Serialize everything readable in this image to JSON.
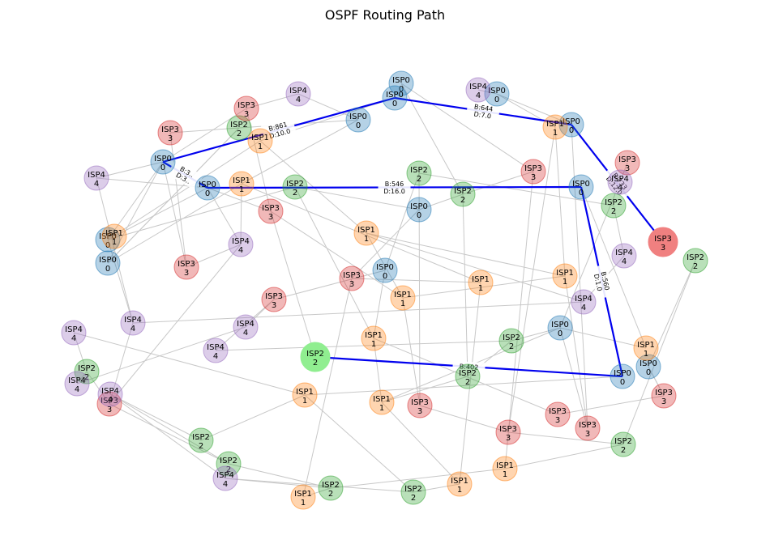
{
  "title": "OSPF Routing Path",
  "colors": {
    "ISP0": "#1f77b4",
    "ISP1": "#ff7f0e",
    "ISP2": "#2ca02c",
    "ISP3": "#d62728",
    "ISP4": "#9467bd",
    "path": "#0000ee",
    "edge": "#c8c8c8",
    "source": "#90ee90",
    "target": "#f08080"
  },
  "nodes": [
    {
      "id": "n0",
      "isp": "ISP0",
      "asn": "0"
    },
    {
      "id": "n1",
      "isp": "ISP0",
      "asn": "0"
    },
    {
      "id": "n2",
      "isp": "ISP0",
      "asn": "0"
    },
    {
      "id": "n3",
      "isp": "ISP0",
      "asn": "0"
    },
    {
      "id": "n4",
      "isp": "ISP0",
      "asn": "0"
    },
    {
      "id": "n5",
      "isp": "ISP0",
      "asn": "0"
    },
    {
      "id": "n6",
      "isp": "ISP0",
      "asn": "0"
    },
    {
      "id": "n7",
      "isp": "ISP0",
      "asn": "0"
    },
    {
      "id": "n8",
      "isp": "ISP0",
      "asn": "0"
    },
    {
      "id": "n9",
      "isp": "ISP0",
      "asn": "0"
    },
    {
      "id": "n10",
      "isp": "ISP0",
      "asn": "0"
    },
    {
      "id": "n11",
      "isp": "ISP0",
      "asn": "0"
    },
    {
      "id": "n12",
      "isp": "ISP0",
      "asn": "0"
    },
    {
      "id": "n13",
      "isp": "ISP0",
      "asn": "0"
    },
    {
      "id": "n14",
      "isp": "ISP0",
      "asn": "0"
    },
    {
      "id": "n15",
      "isp": "ISP1",
      "asn": "1"
    },
    {
      "id": "n16",
      "isp": "ISP1",
      "asn": "1"
    },
    {
      "id": "n17",
      "isp": "ISP1",
      "asn": "1"
    },
    {
      "id": "n18",
      "isp": "ISP1",
      "asn": "1"
    },
    {
      "id": "n19",
      "isp": "ISP1",
      "asn": "1"
    },
    {
      "id": "n20",
      "isp": "ISP1",
      "asn": "1"
    },
    {
      "id": "n21",
      "isp": "ISP1",
      "asn": "1"
    },
    {
      "id": "n22",
      "isp": "ISP1",
      "asn": "1"
    },
    {
      "id": "n23",
      "isp": "ISP1",
      "asn": "1"
    },
    {
      "id": "n24",
      "isp": "ISP1",
      "asn": "1"
    },
    {
      "id": "n25",
      "isp": "ISP1",
      "asn": "1"
    },
    {
      "id": "n26",
      "isp": "ISP1",
      "asn": "1"
    },
    {
      "id": "n27",
      "isp": "ISP1",
      "asn": "1"
    },
    {
      "id": "n28",
      "isp": "ISP1",
      "asn": "1"
    },
    {
      "id": "n29",
      "isp": "ISP1",
      "asn": "1"
    },
    {
      "id": "n30",
      "isp": "ISP2",
      "asn": "2"
    },
    {
      "id": "n31",
      "isp": "ISP2",
      "asn": "2"
    },
    {
      "id": "n32",
      "isp": "ISP2",
      "asn": "2"
    },
    {
      "id": "n33",
      "isp": "ISP2",
      "asn": "2"
    },
    {
      "id": "n34",
      "isp": "ISP2",
      "asn": "2"
    },
    {
      "id": "n35",
      "isp": "ISP2",
      "asn": "2"
    },
    {
      "id": "n36",
      "isp": "ISP2",
      "asn": "2"
    },
    {
      "id": "n37",
      "isp": "ISP2",
      "asn": "2"
    },
    {
      "id": "n38",
      "isp": "ISP2",
      "asn": "2"
    },
    {
      "id": "n39",
      "isp": "ISP2",
      "asn": "2"
    },
    {
      "id": "n40",
      "isp": "ISP2",
      "asn": "2"
    },
    {
      "id": "n41",
      "isp": "ISP2",
      "asn": "2"
    },
    {
      "id": "n42",
      "isp": "ISP2",
      "asn": "2"
    },
    {
      "id": "n43",
      "isp": "ISP2",
      "asn": "2"
    },
    {
      "id": "n44",
      "isp": "ISP3",
      "asn": "3"
    },
    {
      "id": "n45",
      "isp": "ISP3",
      "asn": "3"
    },
    {
      "id": "n46",
      "isp": "ISP3",
      "asn": "3"
    },
    {
      "id": "n47",
      "isp": "ISP3",
      "asn": "3"
    },
    {
      "id": "n48",
      "isp": "ISP3",
      "asn": "3"
    },
    {
      "id": "n49",
      "isp": "ISP3",
      "asn": "3"
    },
    {
      "id": "n50",
      "isp": "ISP3",
      "asn": "3"
    },
    {
      "id": "n51",
      "isp": "ISP3",
      "asn": "3"
    },
    {
      "id": "n52",
      "isp": "ISP3",
      "asn": "3"
    },
    {
      "id": "n53",
      "isp": "ISP3",
      "asn": "3"
    },
    {
      "id": "n54",
      "isp": "ISP3",
      "asn": "3"
    },
    {
      "id": "n55",
      "isp": "ISP3",
      "asn": "3"
    },
    {
      "id": "n56",
      "isp": "ISP3",
      "asn": "3"
    },
    {
      "id": "n57",
      "isp": "ISP3",
      "asn": "3"
    },
    {
      "id": "n58",
      "isp": "ISP3",
      "asn": "3"
    },
    {
      "id": "n59",
      "isp": "ISP4",
      "asn": "4"
    },
    {
      "id": "n60",
      "isp": "ISP4",
      "asn": "4"
    },
    {
      "id": "n61",
      "isp": "ISP4",
      "asn": "4"
    },
    {
      "id": "n62",
      "isp": "ISP4",
      "asn": "4"
    },
    {
      "id": "n63",
      "isp": "ISP4",
      "asn": "4"
    },
    {
      "id": "n64",
      "isp": "ISP4",
      "asn": "4"
    },
    {
      "id": "n65",
      "isp": "ISP4",
      "asn": "4"
    },
    {
      "id": "n66",
      "isp": "ISP4",
      "asn": "4"
    },
    {
      "id": "n67",
      "isp": "ISP4",
      "asn": "4"
    },
    {
      "id": "n68",
      "isp": "ISP4",
      "asn": "4"
    },
    {
      "id": "n69",
      "isp": "ISP4",
      "asn": "4"
    },
    {
      "id": "n70",
      "isp": "ISP4",
      "asn": "4"
    },
    {
      "id": "n71",
      "isp": "ISP4",
      "asn": "4"
    },
    {
      "id": "n72",
      "isp": "ISP4",
      "asn": "4"
    },
    {
      "id": "src",
      "isp": "ISP2",
      "asn": "2",
      "role": "source"
    },
    {
      "id": "dst",
      "isp": "ISP3",
      "asn": "3",
      "role": "target"
    }
  ],
  "path_edges": [
    {
      "from": "src",
      "to": "n13",
      "label": "B:402"
    },
    {
      "from": "n13",
      "to": "n11",
      "label": "B:560\nD:1.0"
    },
    {
      "from": "n11",
      "to": "n5",
      "label": "B:546\nD:16.0"
    },
    {
      "from": "n5",
      "to": "n3",
      "label": "B:3..\nD:3.."
    },
    {
      "from": "n3",
      "to": "n1",
      "label": "B:861\nD:10.0"
    },
    {
      "from": "n1",
      "to": "n10",
      "label": "B:644\nD:7.0"
    },
    {
      "from": "n10",
      "to": "dst",
      "label": "B:733\nD:12.0"
    }
  ]
}
